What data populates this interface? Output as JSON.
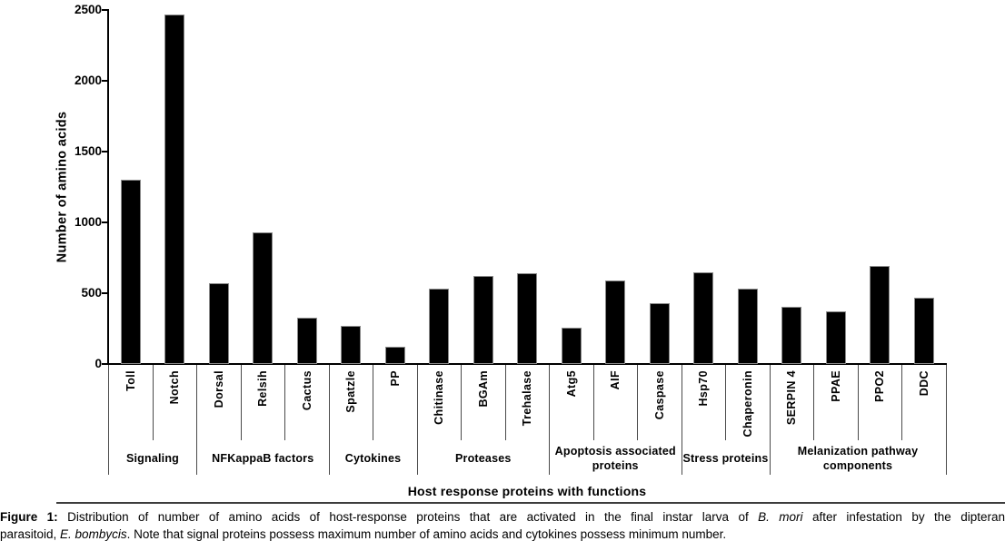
{
  "chart_data": {
    "type": "bar",
    "title": "",
    "ylabel": "Number of amino acids",
    "xlabel": "Host response proteins with functions",
    "ylim": [
      0,
      2500
    ],
    "yticks": [
      0,
      500,
      1000,
      1500,
      2000,
      2500
    ],
    "grid": false,
    "legend": false,
    "bar_color": "#000000",
    "axis_color": "#000000",
    "groups": [
      {
        "label": "Signaling",
        "categories": [
          "Toll",
          "Notch"
        ],
        "values": [
          1300,
          2470
        ]
      },
      {
        "label": "NFKappaB factors",
        "categories": [
          "Dorsal",
          "Relsih",
          "Cactus"
        ],
        "values": [
          570,
          930,
          325
        ]
      },
      {
        "label": "Cytokines",
        "categories": [
          "Spatzle",
          "PP"
        ],
        "values": [
          270,
          125
        ]
      },
      {
        "label": "Proteases",
        "categories": [
          "Chitinase",
          "BGAm",
          "Trehalase"
        ],
        "values": [
          535,
          625,
          640
        ]
      },
      {
        "label": "Apoptosis associated proteins",
        "categories": [
          "Atg5",
          "AIF",
          "Caspase"
        ],
        "values": [
          255,
          590,
          430
        ]
      },
      {
        "label": "Stress proteins",
        "categories": [
          "Hsp70",
          "Chaperonin"
        ],
        "values": [
          650,
          530
        ]
      },
      {
        "label": "Melanization pathway components",
        "categories": [
          "SERPIN 4",
          "PPAE",
          "PPO2",
          "DDC"
        ],
        "values": [
          405,
          375,
          690,
          465
        ]
      }
    ]
  },
  "figure": {
    "caption": {
      "lines": [
        [
          {
            "text": "Figure 1:",
            "bold": true
          },
          {
            "text": " Distribution of number of amino acids of host-response proteins that are activated in the final instar larva of "
          },
          {
            "text": "B. mori",
            "italic": true
          },
          {
            "text": " after infestation by the dipteran"
          }
        ],
        [
          {
            "text": "parasitoid, "
          },
          {
            "text": "E. bombycis",
            "italic": true
          },
          {
            "text": ". Note that signal proteins possess maximum number of amino acids and cytokines possess minimum number."
          }
        ]
      ]
    }
  }
}
